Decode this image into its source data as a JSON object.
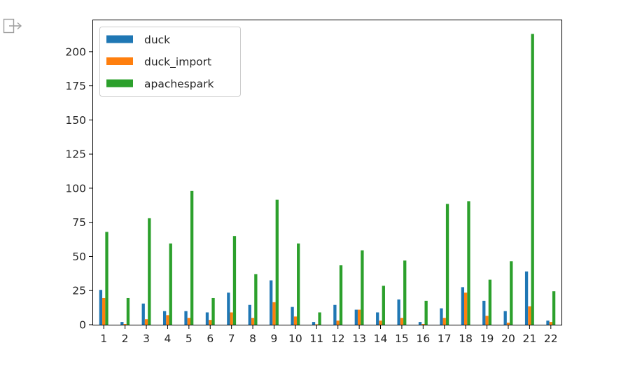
{
  "chart_data": {
    "type": "bar",
    "categories": [
      "1",
      "2",
      "3",
      "4",
      "5",
      "6",
      "7",
      "8",
      "9",
      "10",
      "11",
      "12",
      "13",
      "14",
      "15",
      "16",
      "17",
      "18",
      "19",
      "20",
      "21",
      "22"
    ],
    "series": [
      {
        "name": "duck",
        "color": "#1f77b4",
        "values": [
          25.5,
          2,
          15.5,
          10,
          10,
          9,
          23.5,
          14.5,
          32.5,
          13,
          2,
          14.5,
          11,
          9,
          18.5,
          2,
          12,
          27.5,
          17.5,
          10,
          39,
          3
        ]
      },
      {
        "name": "duck_import",
        "color": "#ff7f0e",
        "values": [
          19.5,
          0.5,
          4,
          7,
          5,
          3.5,
          9,
          5,
          16.5,
          6,
          0.3,
          3,
          11,
          3,
          5,
          0.5,
          5,
          23.5,
          6.5,
          1.5,
          13.5,
          2
        ]
      },
      {
        "name": "apachespark",
        "color": "#2ca02c",
        "values": [
          68,
          19.5,
          78,
          59.5,
          98,
          19.5,
          65,
          37,
          91.5,
          59.5,
          9,
          43.5,
          54.5,
          28.5,
          47,
          17.5,
          88.5,
          90.5,
          33,
          46.5,
          213,
          24.5
        ]
      }
    ],
    "ylim": [
      0,
      223
    ],
    "yticks": [
      0,
      25,
      50,
      75,
      100,
      125,
      150,
      175,
      200
    ],
    "legend_position": "top-left",
    "grid": false
  },
  "output_icon": "output-arrow-icon"
}
